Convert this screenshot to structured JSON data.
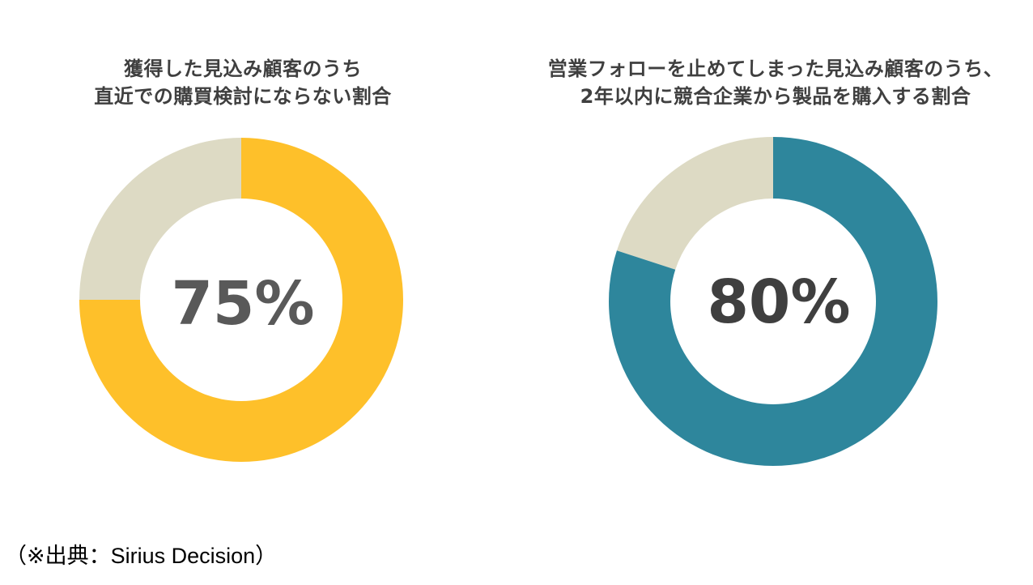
{
  "chart_data": [
    {
      "type": "pie",
      "title": "獲得した見込み顧客のうち 直近での購買検討にならない割合",
      "title_lines": [
        "獲得した見込み顧客のうち",
        "直近での購買検討にならない割合"
      ],
      "center_label": "75%",
      "value": 75,
      "remainder": 25,
      "colors": {
        "value": "#FEC02A",
        "remainder": "#DDDAC4",
        "label": "#595959"
      }
    },
    {
      "type": "pie",
      "title": "営業フォローを止めてしまった見込み顧客のうち、 2年以内に競合企業から製品を購入する割合",
      "title_lines": [
        "営業フォローを止めてしまった見込み顧客のうち、",
        "2年以内に競合企業から製品を購入する割合"
      ],
      "center_label": "80%",
      "value": 80,
      "remainder": 20,
      "colors": {
        "value": "#2E869C",
        "remainder": "#DDDAC4",
        "label": "#3F3F3F"
      }
    }
  ],
  "source_note": "（※出典：Sirius Decision）"
}
